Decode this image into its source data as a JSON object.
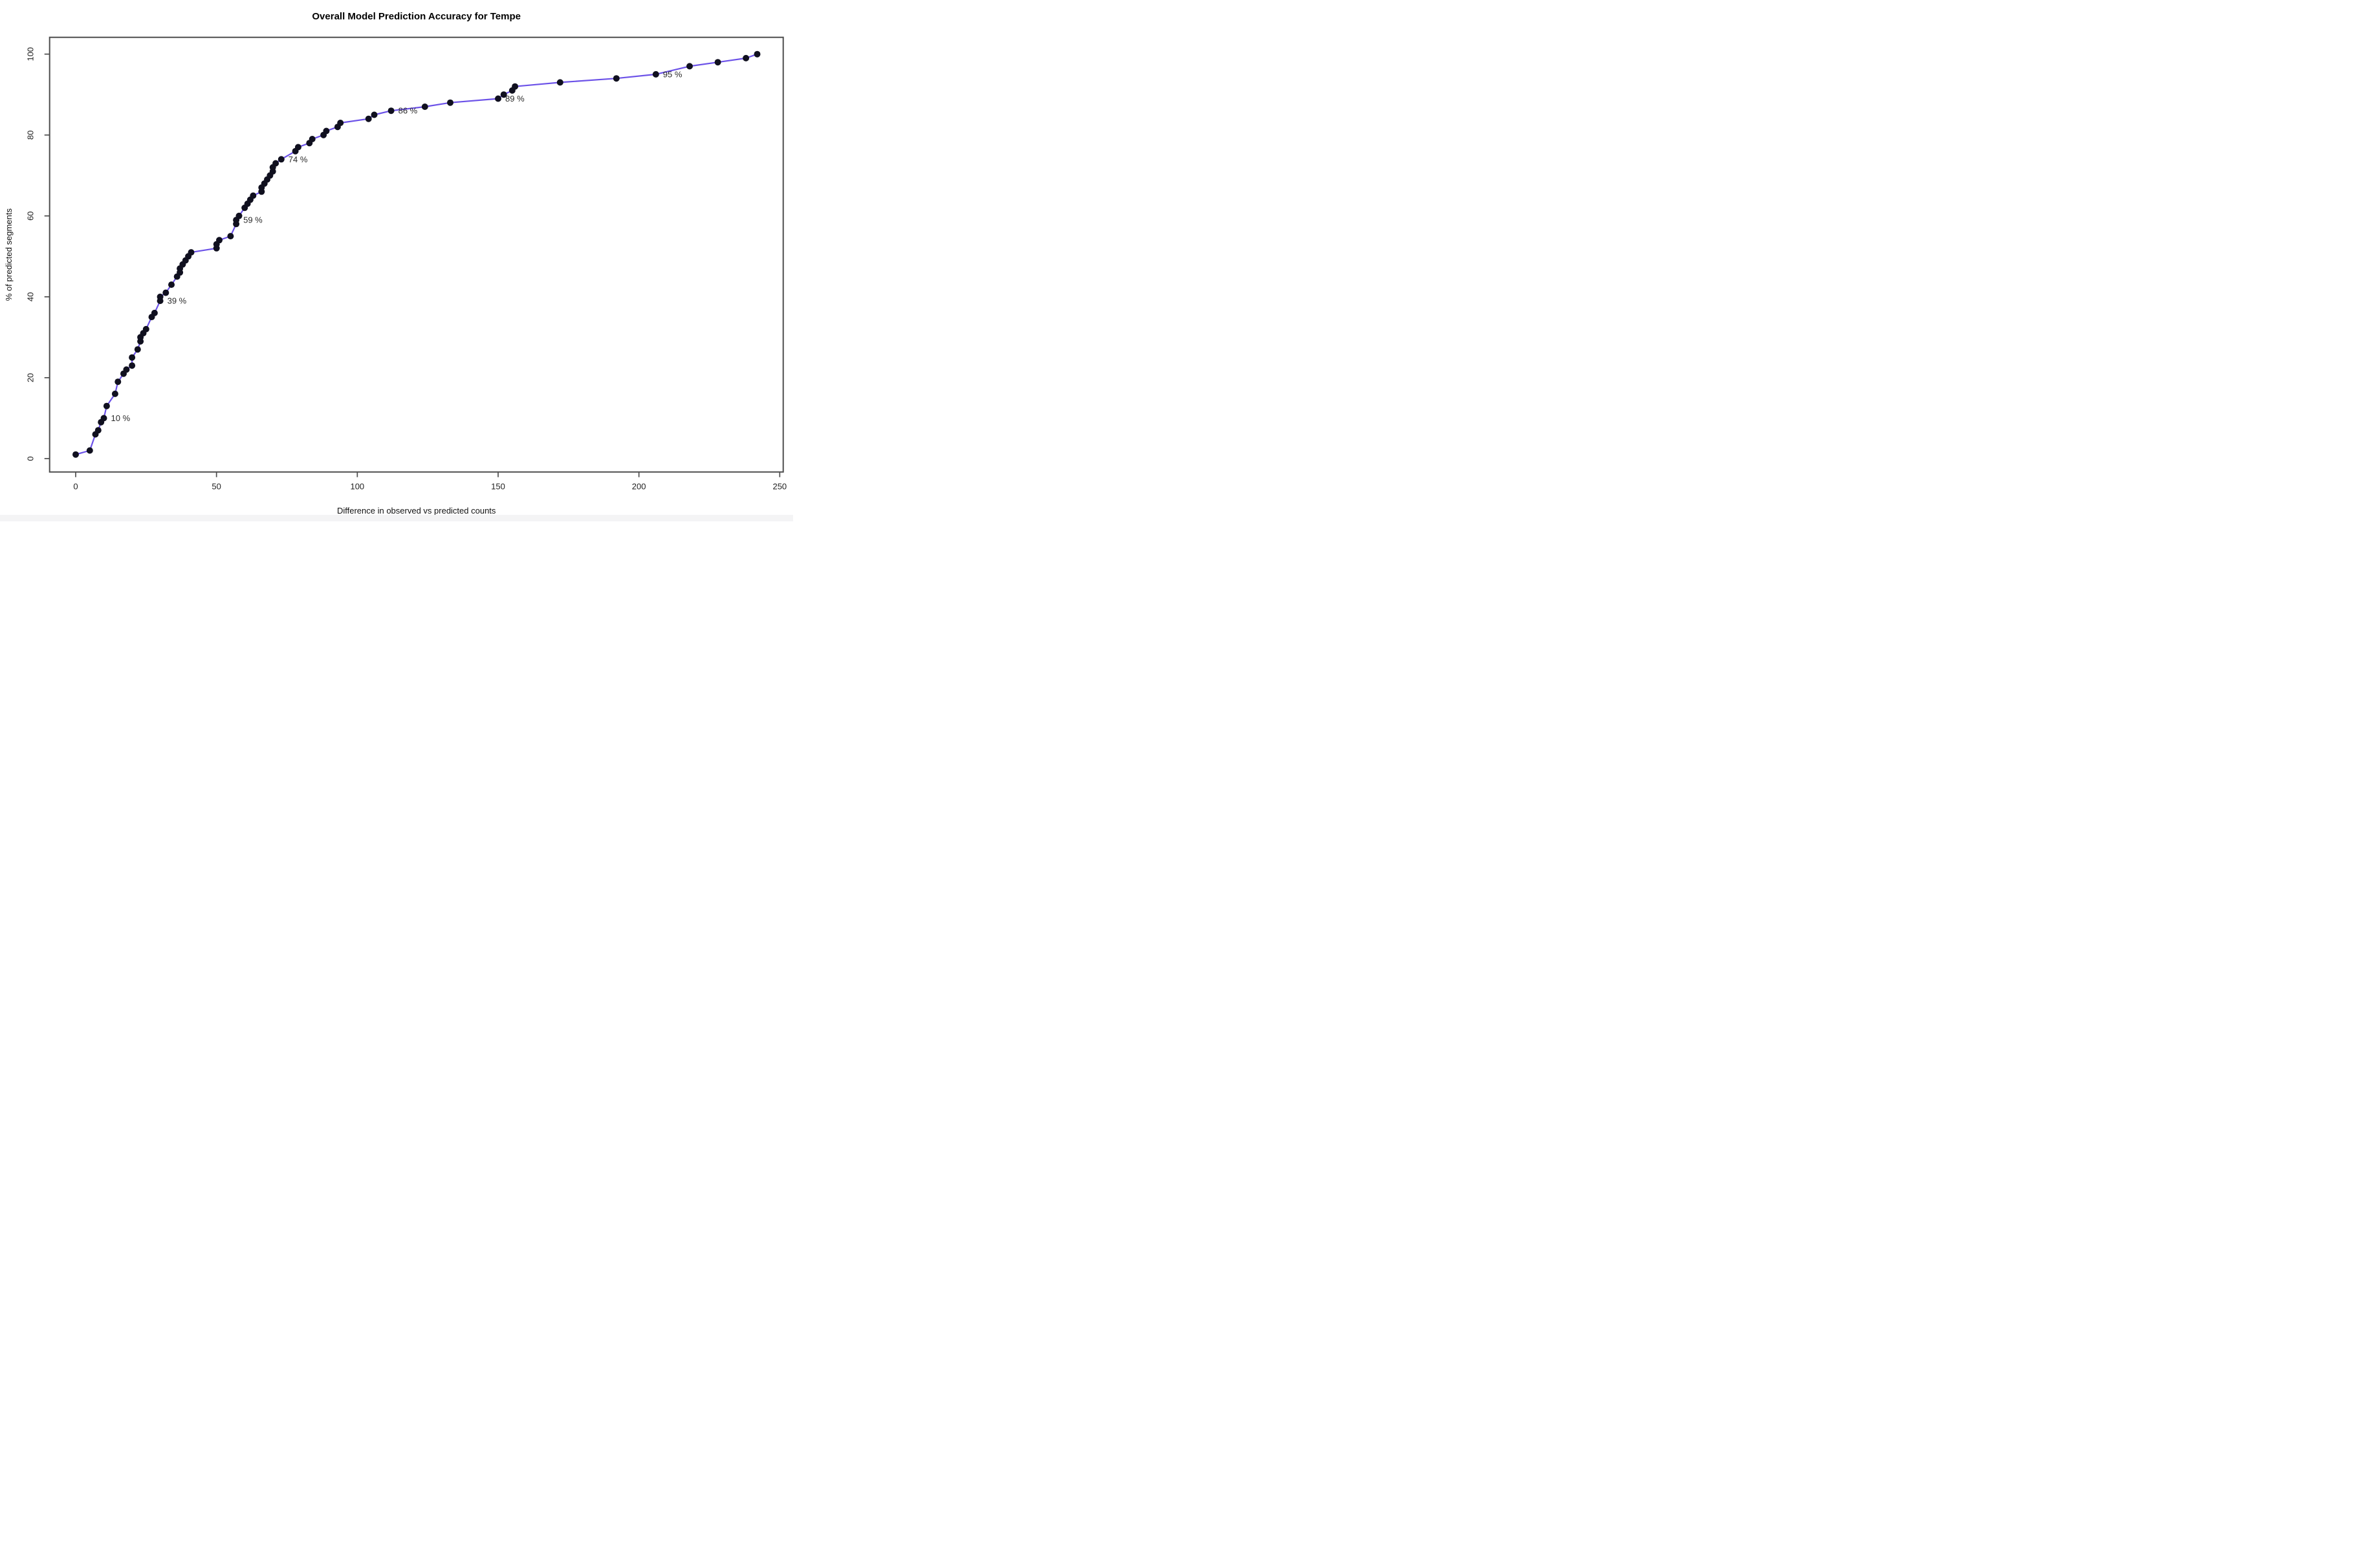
{
  "title": "Overall Model Prediction Accuracy for Tempe",
  "chart_data": {
    "type": "line",
    "title": "Overall Model Prediction Accuracy for Tempe",
    "xlabel": "Difference in observed vs predicted counts",
    "ylabel": "% of predicted segments",
    "xlim": [
      0,
      250
    ],
    "ylim": [
      0,
      100
    ],
    "x_ticks": [
      0,
      50,
      100,
      150,
      200,
      250
    ],
    "y_ticks": [
      0,
      20,
      40,
      60,
      80,
      100
    ],
    "grid": false,
    "legend": "none",
    "line_color": "#6c52e8",
    "point_color": "#10101f",
    "axis_color": "#4d4d4d",
    "label_color": "#2b2b2b",
    "points": [
      [
        0,
        1
      ],
      [
        5,
        2
      ],
      [
        7,
        6
      ],
      [
        8,
        7
      ],
      [
        9,
        9
      ],
      [
        10,
        10
      ],
      [
        11,
        13
      ],
      [
        14,
        16
      ],
      [
        15,
        19
      ],
      [
        17,
        21
      ],
      [
        18,
        22
      ],
      [
        20,
        23
      ],
      [
        20,
        25
      ],
      [
        22,
        27
      ],
      [
        23,
        29
      ],
      [
        23,
        30
      ],
      [
        24,
        31
      ],
      [
        25,
        32
      ],
      [
        27,
        35
      ],
      [
        28,
        36
      ],
      [
        30,
        39
      ],
      [
        30,
        40
      ],
      [
        32,
        41
      ],
      [
        34,
        43
      ],
      [
        36,
        45
      ],
      [
        37,
        46
      ],
      [
        37,
        47
      ],
      [
        38,
        48
      ],
      [
        39,
        49
      ],
      [
        40,
        50
      ],
      [
        41,
        51
      ],
      [
        50,
        52
      ],
      [
        50,
        53
      ],
      [
        51,
        54
      ],
      [
        55,
        55
      ],
      [
        57,
        58
      ],
      [
        57,
        59
      ],
      [
        58,
        60
      ],
      [
        60,
        62
      ],
      [
        61,
        63
      ],
      [
        62,
        64
      ],
      [
        63,
        65
      ],
      [
        66,
        66
      ],
      [
        66,
        67
      ],
      [
        67,
        68
      ],
      [
        68,
        69
      ],
      [
        69,
        70
      ],
      [
        70,
        71
      ],
      [
        70,
        72
      ],
      [
        71,
        73
      ],
      [
        73,
        74
      ],
      [
        78,
        76
      ],
      [
        79,
        77
      ],
      [
        83,
        78
      ],
      [
        84,
        79
      ],
      [
        88,
        80
      ],
      [
        89,
        81
      ],
      [
        93,
        82
      ],
      [
        94,
        83
      ],
      [
        104,
        84
      ],
      [
        106,
        85
      ],
      [
        112,
        86
      ],
      [
        124,
        87
      ],
      [
        133,
        88
      ],
      [
        150,
        89
      ],
      [
        152,
        90
      ],
      [
        155,
        91
      ],
      [
        156,
        92
      ],
      [
        172,
        93
      ],
      [
        192,
        94
      ],
      [
        206,
        95
      ],
      [
        218,
        97
      ],
      [
        228,
        98
      ],
      [
        238,
        99
      ],
      [
        242,
        100
      ]
    ],
    "annotations": [
      {
        "x": 10,
        "y": 10,
        "label": "10 %"
      },
      {
        "x": 30,
        "y": 39,
        "label": "39 %"
      },
      {
        "x": 57,
        "y": 59,
        "label": "59 %"
      },
      {
        "x": 73,
        "y": 74,
        "label": "74 %"
      },
      {
        "x": 112,
        "y": 86,
        "label": "86 %"
      },
      {
        "x": 150,
        "y": 89,
        "label": "89 %"
      },
      {
        "x": 206,
        "y": 95,
        "label": "95 %"
      }
    ]
  }
}
